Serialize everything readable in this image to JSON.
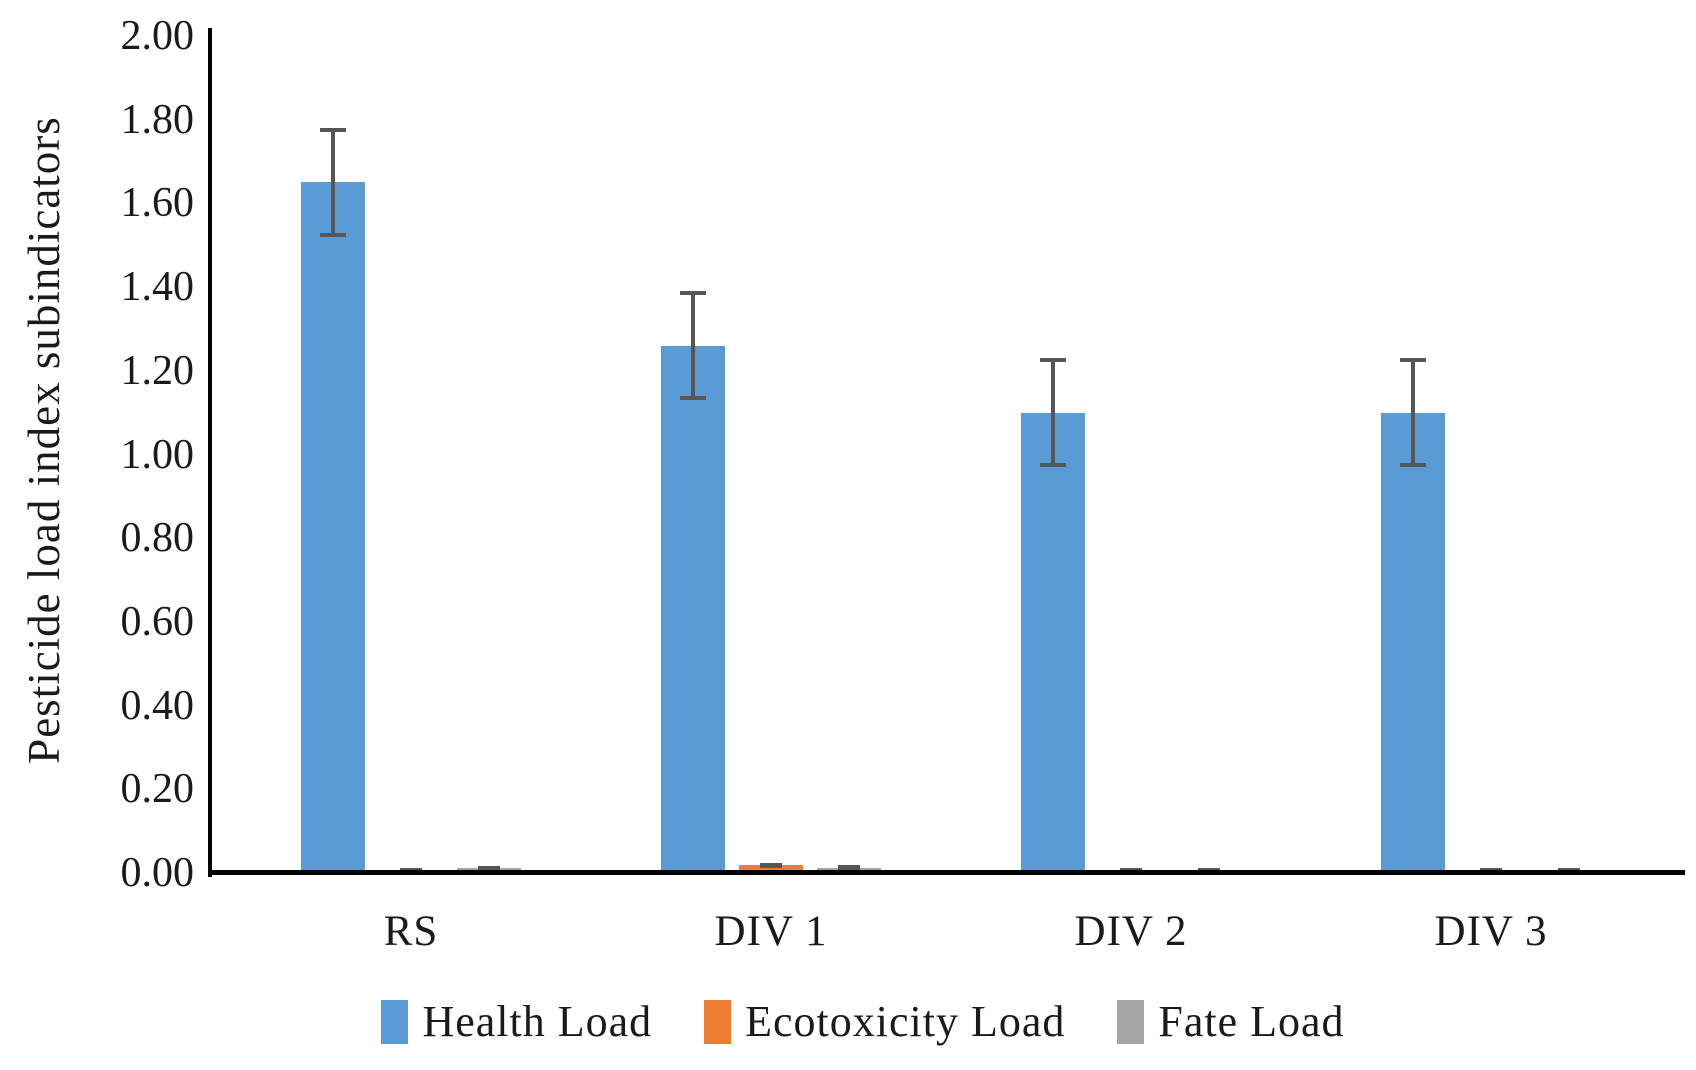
{
  "chart_data": {
    "type": "bar",
    "title": "",
    "ylabel": "Pesticide load index subindicators",
    "xlabel": "",
    "categories": [
      "RS",
      "DIV 1",
      "DIV 2",
      "DIV 3"
    ],
    "series": [
      {
        "name": "Health Load",
        "color": "#5B9BD5",
        "values": [
          1.65,
          1.26,
          1.1,
          1.1
        ],
        "errors": [
          0.13,
          0.13,
          0.13,
          0.13
        ]
      },
      {
        "name": "Ecotoxicity Load",
        "color": "#ED7D31",
        "values": [
          0.004,
          0.018,
          0.004,
          0.004
        ],
        "errors": [
          0.008,
          0.006,
          0.007,
          0.007
        ]
      },
      {
        "name": "Fate Load",
        "color": "#A5A5A5",
        "values": [
          0.012,
          0.012,
          0.004,
          0.004
        ],
        "errors": [
          0.005,
          0.006,
          0.007,
          0.007
        ]
      }
    ],
    "ylim": [
      0,
      2.0
    ],
    "ytick_step": 0.2,
    "yticks": [
      "0.00",
      "0.20",
      "0.40",
      "0.60",
      "0.80",
      "1.00",
      "1.20",
      "1.40",
      "1.60",
      "1.80",
      "2.00"
    ],
    "legend_position": "bottom",
    "grid": false,
    "error_bar_color": "#565656",
    "axis_color": "#000000",
    "background_color": "#ffffff"
  }
}
